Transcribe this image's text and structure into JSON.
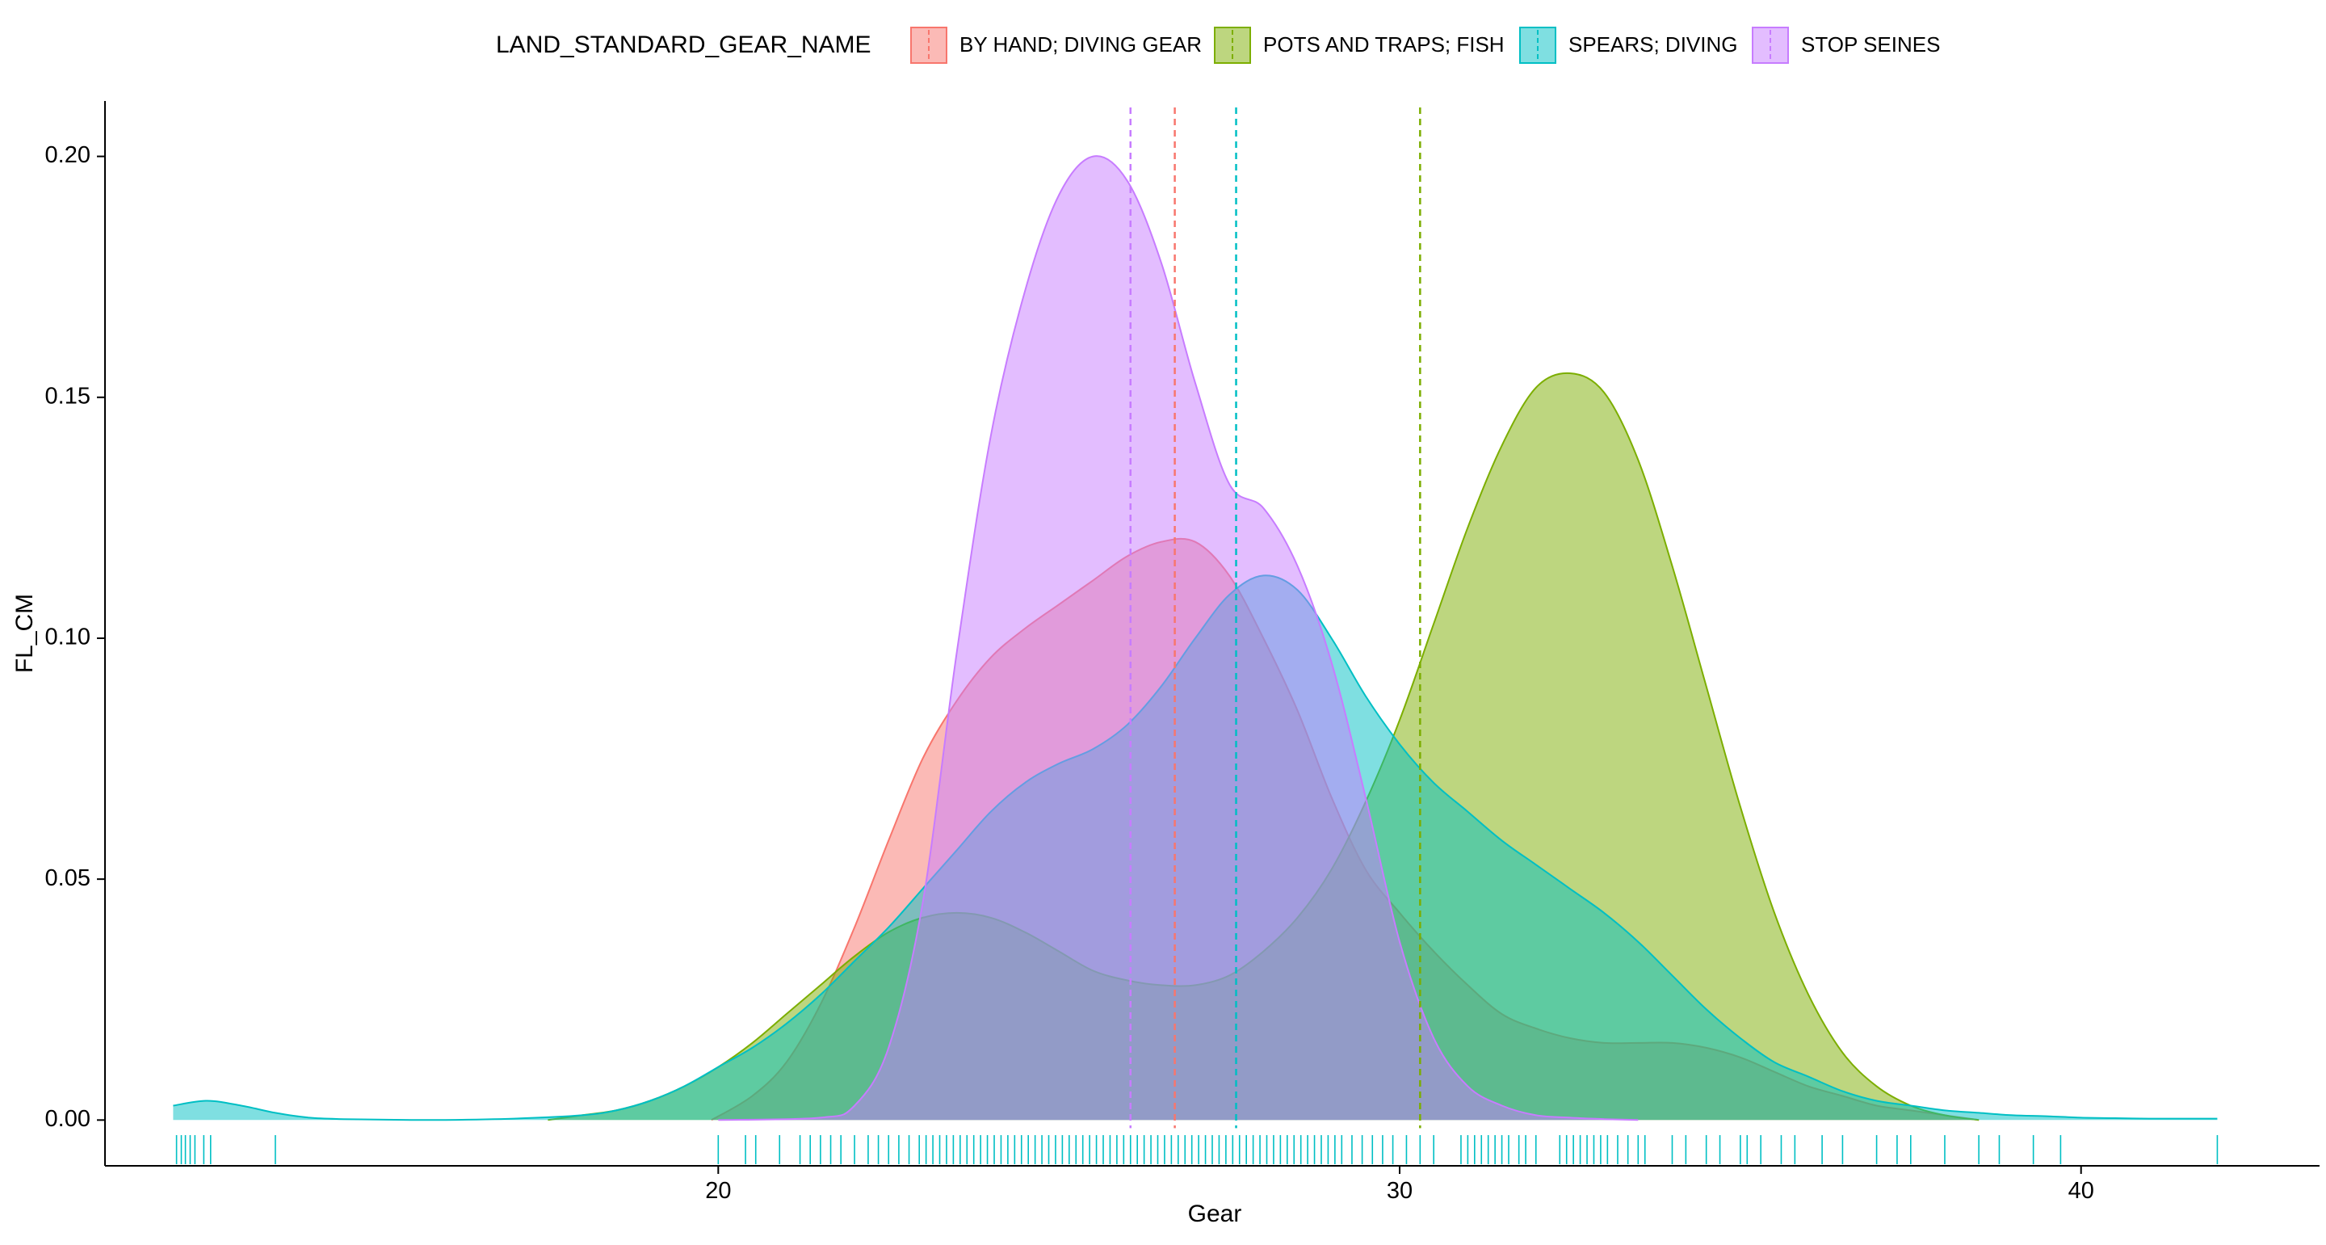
{
  "chart_data": {
    "type": "area",
    "subtype": "density",
    "title": "",
    "xlabel": "Gear",
    "ylabel": "FL_CM",
    "xlim": [
      11.0,
      43.5
    ],
    "ylim": [
      -0.0095,
      0.2115
    ],
    "x_ticks": [
      20,
      30,
      40
    ],
    "y_ticks": [
      0.0,
      0.05,
      0.1,
      0.15,
      0.2
    ],
    "x_tick_labels": [
      "20",
      "30",
      "40"
    ],
    "y_tick_labels": [
      "0.00",
      "0.05",
      "0.10",
      "0.15",
      "0.20"
    ],
    "grid": false,
    "legend": {
      "title": "LAND_STANDARD_GEAR_NAME",
      "position": "top",
      "entries": [
        "BY HAND; DIVING GEAR",
        "POTS AND TRAPS; FISH",
        "SPEARS; DIVING",
        "STOP SEINES"
      ]
    },
    "series": [
      {
        "name": "BY HAND; DIVING GEAR",
        "color": "#F8766D",
        "mean": 26.7,
        "x": [
          19.9,
          20.5,
          21.0,
          21.5,
          22.0,
          22.5,
          23.0,
          23.5,
          24.0,
          24.5,
          25.0,
          25.5,
          26.0,
          26.5,
          27.0,
          27.5,
          28.0,
          28.5,
          29.0,
          29.5,
          30.0,
          30.5,
          31.0,
          31.5,
          32.0,
          32.5,
          33.0,
          33.5,
          34.0,
          34.5,
          35.0,
          35.5,
          36.0,
          36.5,
          37.0,
          37.5,
          38.0,
          38.5
        ],
        "y": [
          0.0,
          0.005,
          0.012,
          0.024,
          0.04,
          0.058,
          0.075,
          0.087,
          0.096,
          0.102,
          0.107,
          0.112,
          0.117,
          0.12,
          0.12,
          0.113,
          0.1,
          0.085,
          0.067,
          0.052,
          0.043,
          0.035,
          0.028,
          0.022,
          0.019,
          0.017,
          0.016,
          0.016,
          0.016,
          0.015,
          0.013,
          0.01,
          0.007,
          0.005,
          0.003,
          0.002,
          0.001,
          0.0
        ]
      },
      {
        "name": "POTS AND TRAPS; FISH",
        "color": "#7CAE00",
        "mean": 30.3,
        "x": [
          17.5,
          18.0,
          18.5,
          19.0,
          19.5,
          20.0,
          20.5,
          21.0,
          21.5,
          22.0,
          22.5,
          23.0,
          23.5,
          24.0,
          24.5,
          25.0,
          25.5,
          26.0,
          26.5,
          27.0,
          27.5,
          28.0,
          28.5,
          29.0,
          29.5,
          30.0,
          30.5,
          31.0,
          31.5,
          32.0,
          32.5,
          33.0,
          33.5,
          34.0,
          34.5,
          35.0,
          35.5,
          36.0,
          36.5,
          37.0,
          37.5,
          38.0,
          38.5
        ],
        "y": [
          0.0,
          0.001,
          0.002,
          0.004,
          0.007,
          0.011,
          0.016,
          0.022,
          0.028,
          0.034,
          0.039,
          0.042,
          0.043,
          0.042,
          0.039,
          0.035,
          0.031,
          0.029,
          0.028,
          0.028,
          0.03,
          0.035,
          0.042,
          0.052,
          0.066,
          0.083,
          0.103,
          0.123,
          0.14,
          0.152,
          0.155,
          0.151,
          0.137,
          0.115,
          0.09,
          0.065,
          0.043,
          0.026,
          0.014,
          0.007,
          0.003,
          0.001,
          0.0
        ]
      },
      {
        "name": "SPEARS; DIVING",
        "color": "#00BFC4",
        "mean": 27.6,
        "x": [
          12.0,
          12.5,
          13.0,
          13.5,
          14.0,
          14.5,
          15.0,
          15.5,
          16.0,
          17.0,
          18.0,
          18.5,
          19.0,
          19.5,
          20.0,
          20.5,
          21.0,
          21.5,
          22.0,
          22.5,
          23.0,
          23.5,
          24.0,
          24.5,
          25.0,
          25.5,
          26.0,
          26.5,
          27.0,
          27.5,
          28.0,
          28.5,
          29.0,
          29.5,
          30.0,
          30.5,
          31.0,
          31.5,
          32.0,
          32.5,
          33.0,
          33.5,
          34.0,
          34.5,
          35.0,
          35.5,
          36.0,
          36.5,
          37.0,
          37.5,
          38.0,
          38.5,
          39.0,
          39.5,
          40.0,
          40.5,
          41.0,
          41.5,
          42.0
        ],
        "y": [
          0.003,
          0.004,
          0.003,
          0.0015,
          0.0005,
          0.0002,
          0.0001,
          0.0,
          0.0,
          0.0003,
          0.001,
          0.002,
          0.004,
          0.007,
          0.011,
          0.015,
          0.02,
          0.026,
          0.033,
          0.04,
          0.048,
          0.056,
          0.064,
          0.07,
          0.074,
          0.077,
          0.082,
          0.09,
          0.1,
          0.109,
          0.113,
          0.11,
          0.1,
          0.088,
          0.078,
          0.07,
          0.064,
          0.058,
          0.053,
          0.048,
          0.043,
          0.037,
          0.03,
          0.023,
          0.017,
          0.012,
          0.009,
          0.006,
          0.004,
          0.003,
          0.002,
          0.0015,
          0.001,
          0.0008,
          0.0005,
          0.0004,
          0.0003,
          0.0003,
          0.0003
        ]
      },
      {
        "name": "STOP SEINES",
        "color": "#C77CFF",
        "mean": 26.05,
        "x": [
          20.0,
          21.5,
          22.0,
          22.5,
          23.0,
          23.5,
          24.0,
          24.5,
          25.0,
          25.5,
          26.0,
          26.5,
          27.0,
          27.5,
          28.0,
          28.5,
          29.0,
          29.5,
          30.0,
          30.5,
          31.0,
          31.5,
          32.0,
          32.5,
          33.0,
          33.5
        ],
        "y": [
          0.0,
          0.0005,
          0.003,
          0.015,
          0.045,
          0.097,
          0.142,
          0.172,
          0.192,
          0.2,
          0.195,
          0.178,
          0.153,
          0.132,
          0.127,
          0.115,
          0.095,
          0.067,
          0.037,
          0.017,
          0.007,
          0.003,
          0.001,
          0.0005,
          0.0002,
          0.0
        ]
      }
    ],
    "rug": {
      "color": "#00BFC4",
      "x": [
        12.05,
        12.12,
        12.18,
        12.25,
        12.32,
        12.45,
        12.55,
        13.5,
        20.0,
        20.4,
        20.55,
        20.9,
        21.2,
        21.35,
        21.5,
        21.65,
        21.8,
        22.0,
        22.2,
        22.35,
        22.5,
        22.65,
        22.8,
        22.95,
        23.05,
        23.15,
        23.25,
        23.35,
        23.45,
        23.55,
        23.65,
        23.75,
        23.85,
        23.95,
        24.05,
        24.15,
        24.25,
        24.35,
        24.45,
        24.55,
        24.65,
        24.75,
        24.85,
        24.95,
        25.05,
        25.15,
        25.25,
        25.35,
        25.45,
        25.55,
        25.65,
        25.75,
        25.85,
        25.95,
        26.05,
        26.15,
        26.25,
        26.35,
        26.45,
        26.55,
        26.65,
        26.75,
        26.85,
        26.95,
        27.05,
        27.15,
        27.25,
        27.35,
        27.45,
        27.55,
        27.65,
        27.75,
        27.85,
        27.95,
        28.05,
        28.15,
        28.25,
        28.35,
        28.45,
        28.55,
        28.65,
        28.75,
        28.85,
        28.95,
        29.05,
        29.15,
        29.3,
        29.45,
        29.6,
        29.75,
        29.9,
        30.1,
        30.3,
        30.5,
        30.9,
        31.0,
        31.1,
        31.2,
        31.3,
        31.4,
        31.5,
        31.6,
        31.75,
        31.85,
        32.0,
        32.35,
        32.45,
        32.55,
        32.65,
        32.75,
        32.85,
        32.95,
        33.05,
        33.2,
        33.35,
        33.5,
        33.6,
        34.0,
        34.2,
        34.5,
        34.7,
        35.0,
        35.1,
        35.3,
        35.6,
        35.8,
        36.2,
        36.5,
        37.0,
        37.3,
        37.5,
        38.0,
        38.5,
        38.8,
        39.3,
        39.7,
        42.0
      ]
    }
  }
}
